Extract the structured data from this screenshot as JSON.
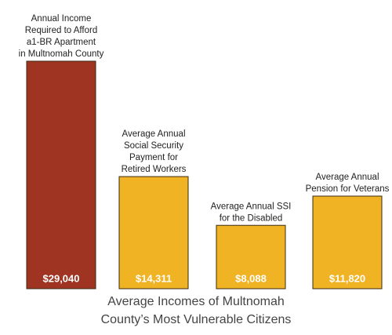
{
  "chart_data": {
    "type": "bar",
    "title": [
      "Average Incomes of Multnomah",
      "County’s Most Vulnerable Citizens"
    ],
    "categories": [
      [
        "Annual Income",
        "Required to Afford",
        "a1-BR Apartment",
        "in Multnomah County"
      ],
      [
        "Average Annual",
        "Social Security",
        "Payment for",
        "Retired Workers"
      ],
      [
        "Average Annual SSI",
        "for the Disabled"
      ],
      [
        "Average Annual",
        "Pension for Veterans"
      ]
    ],
    "values": [
      29040,
      14311,
      8088,
      11820
    ],
    "value_labels": [
      "$29,040",
      "$14,311",
      "$8,088",
      "$11,820"
    ],
    "colors": [
      "#9e3421",
      "#f0b323",
      "#f0b323",
      "#f0b323"
    ]
  }
}
